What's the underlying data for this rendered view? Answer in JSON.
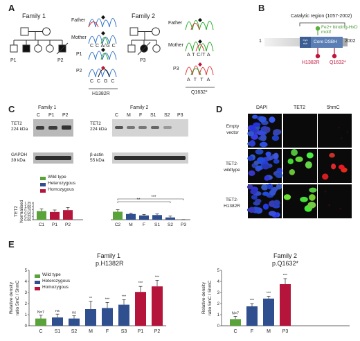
{
  "panel_letters": [
    "A",
    "B",
    "C",
    "D",
    "E"
  ],
  "panelA": {
    "family1_label": "Family 1",
    "family2_label": "Family 2",
    "family1_patients": [
      "P1",
      "P2"
    ],
    "family2_patients": [
      "P3"
    ],
    "trace_labels_f1": [
      "Father",
      "Mother",
      "P1",
      "P2"
    ],
    "trace_labels_f2": [
      "Father",
      "Mother",
      "P3"
    ],
    "seq_f1_mother": "C C A/G C",
    "seq_f1_bottom": "C C G C",
    "mutation_f1": "H1382R",
    "seq_f2_mother": "A T C/T A",
    "seq_f2_bottom": "A T T A",
    "mutation_f2": "Q1632*"
  },
  "panelB": {
    "catalytic_region": "Catalytic region (1057-2002)",
    "fe_motif": "Fe2+ binding-HxD motif",
    "start": "1",
    "end": "2002",
    "cys_rich": "Cys rich",
    "core_dsbh": "Core DSBH",
    "mut1": "H1382R",
    "mut2": "Q1632*",
    "colors": {
      "protein_bar": "#c8c8c8",
      "domain": "#5b7fb5",
      "mut": "#c0163a",
      "fe": "#5cb040"
    }
  },
  "panelC": {
    "family1_label": "Family 1",
    "family2_label": "Family 2",
    "f1_lanes": [
      "C",
      "P1",
      "P2"
    ],
    "f2_lanes": [
      "C",
      "M",
      "F",
      "S1",
      "S2",
      "P3"
    ],
    "tet2_label": "TET2",
    "tet2_size": "224 kDa",
    "gapdh_label": "GAPDH",
    "gapdh_size": "39 kDa",
    "actin_label": "β-actin",
    "actin_size": "55 kDa",
    "legend": [
      "Wild type",
      "Heterozygous",
      "Homozygous"
    ],
    "sig1": "**",
    "sig2": "***"
  },
  "panelD": {
    "col_headers": [
      "DAPI",
      "TET2",
      "5hmC"
    ],
    "row_labels": [
      "Empty vector",
      "TET2-wildtype",
      "TET2-H1382R"
    ]
  },
  "panelE": {
    "family1_title": "Family 1",
    "family1_sub": "p.H1382R",
    "family2_title": "Family 2",
    "family2_sub": "p.Q1632*",
    "legend": [
      "Wild type",
      "Heterozygous",
      "Homozygous"
    ]
  },
  "chart_data": [
    {
      "type": "bar",
      "id": "C",
      "ylabel": "TET2 Normalised",
      "ylim": [
        0,
        1.25
      ],
      "yticks": [
        "0.00",
        "0.25",
        "0.50",
        "0.75",
        "1.00",
        "1.25"
      ],
      "categories": [
        "C1",
        "P1",
        "P2",
        "C2",
        "M",
        "F",
        "S1",
        "S2",
        "P3"
      ],
      "values": [
        0.65,
        0.58,
        0.72,
        0.6,
        0.43,
        0.32,
        0.35,
        0.17,
        0.0
      ],
      "errors": [
        0.17,
        0.15,
        0.2,
        0.15,
        0.07,
        0.08,
        0.08,
        0.1,
        0.01
      ],
      "groups": [
        "wt",
        "hom",
        "hom",
        "wt",
        "het",
        "het",
        "het",
        "het",
        "hom"
      ],
      "colors": {
        "wt": "#5aa33a",
        "het": "#2f4f8e",
        "hom": "#b5153b"
      }
    },
    {
      "type": "bar",
      "id": "E",
      "ylabel": "Relative density ratio 5mC / 5hmC",
      "ylim": [
        0,
        5
      ],
      "yticks": [
        "0",
        "1",
        "2",
        "3",
        "4",
        "5"
      ],
      "categories": [
        "C",
        "S1",
        "S2",
        "M",
        "F",
        "S3",
        "P1",
        "P2",
        "C",
        "F",
        "M",
        "P3"
      ],
      "values": [
        0.65,
        0.75,
        0.65,
        1.5,
        1.6,
        1.9,
        3.05,
        3.55,
        0.6,
        1.75,
        2.45,
        3.75
      ],
      "errors": [
        0.3,
        0.3,
        0.25,
        0.7,
        0.5,
        0.45,
        0.5,
        0.55,
        0.25,
        0.25,
        0.2,
        0.5
      ],
      "annotations": [
        "N=7",
        "ns",
        "ns",
        "**",
        "***",
        "***",
        "***",
        "***",
        "N=7",
        "***",
        "***",
        "***"
      ],
      "groups": [
        "wt",
        "het",
        "het",
        "het",
        "het",
        "het",
        "hom",
        "hom",
        "wt",
        "het",
        "het",
        "hom"
      ],
      "colors": {
        "wt": "#5aa33a",
        "het": "#2f4f8e",
        "hom": "#b5153b"
      }
    }
  ]
}
